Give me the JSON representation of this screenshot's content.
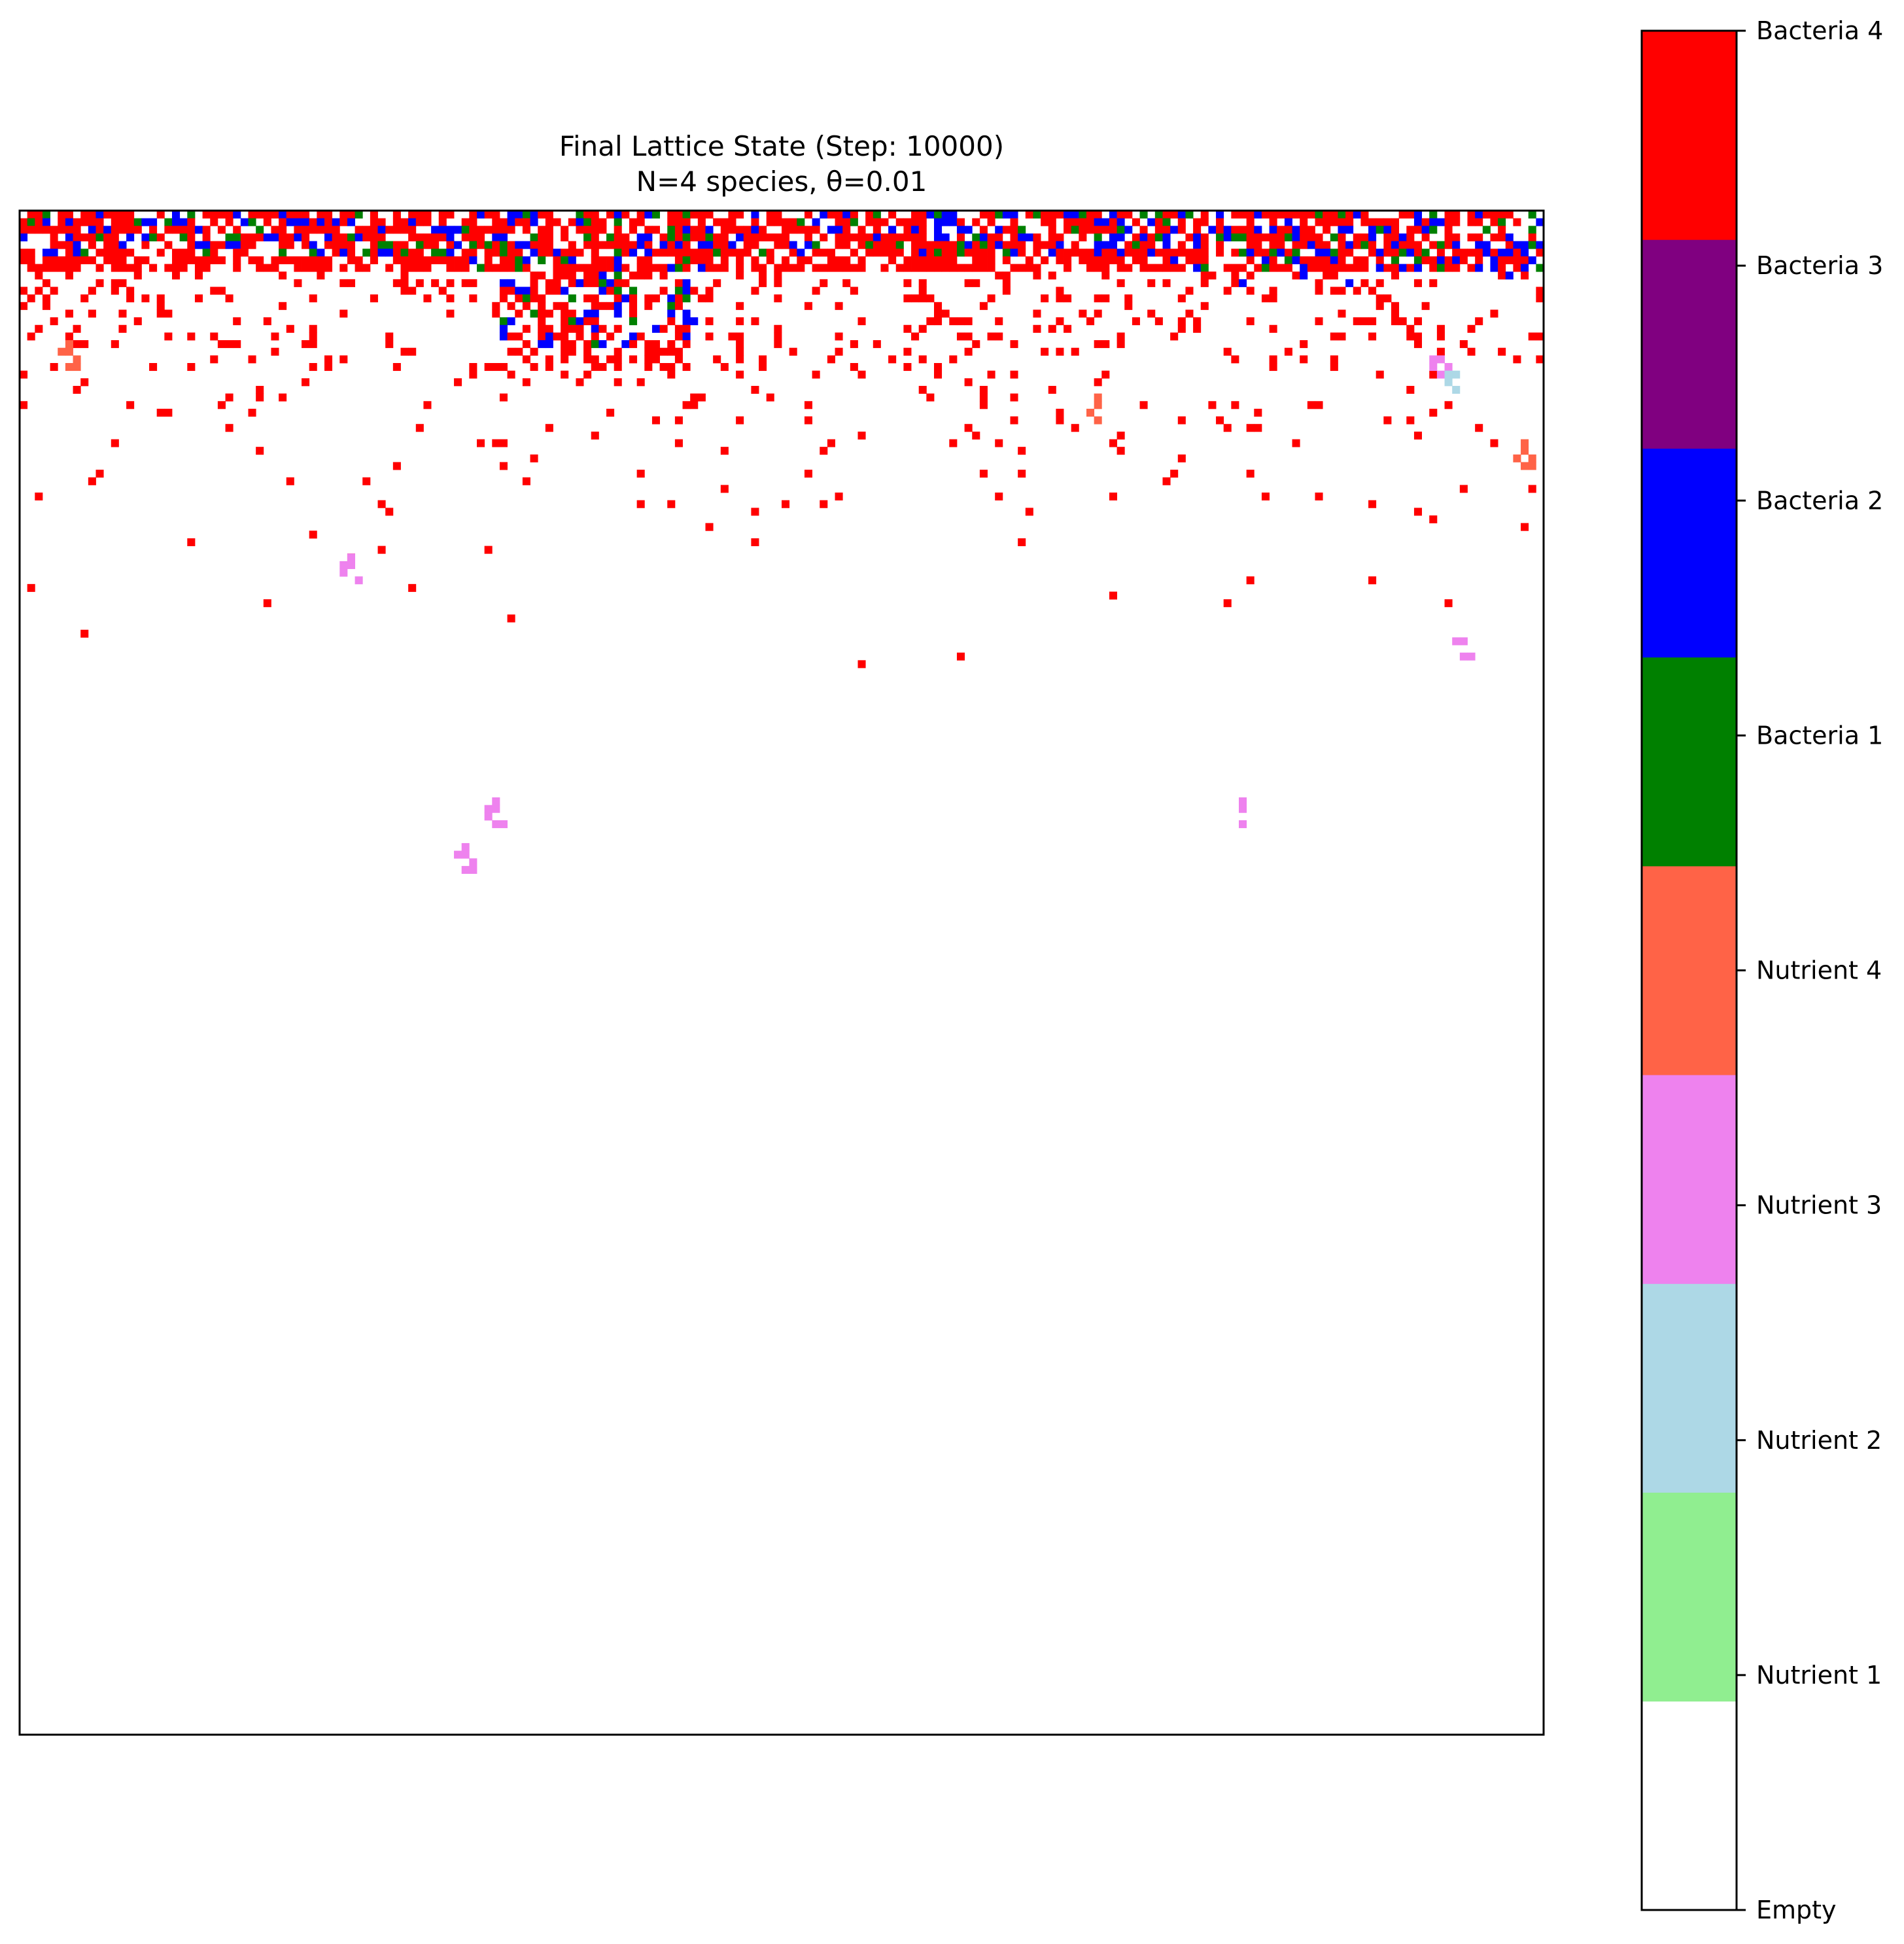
{
  "chart_data": {
    "type": "heatmap",
    "title": "Final Lattice State (Step: 10000)",
    "subtitle": "N=4 species, θ=0.01",
    "xlabel": "",
    "ylabel": "",
    "grid": false,
    "axes_ticks_visible": false,
    "lattice_size": [
      200,
      200
    ],
    "colorbar": {
      "placement": "right",
      "categories": [
        {
          "label": "Empty",
          "color": "#ffffff"
        },
        {
          "label": "Nutrient 1",
          "color": "#90ee90"
        },
        {
          "label": "Nutrient 2",
          "color": "#add8e6"
        },
        {
          "label": "Nutrient 3",
          "color": "#ee82ee"
        },
        {
          "label": "Nutrient 4",
          "color": "#ff6347"
        },
        {
          "label": "Bacteria 1",
          "color": "#008000"
        },
        {
          "label": "Bacteria 2",
          "color": "#0000ff"
        },
        {
          "label": "Bacteria 3",
          "color": "#800080"
        },
        {
          "label": "Bacteria 4",
          "color": "#ff0000"
        }
      ]
    },
    "density_profile": {
      "description_rows": "bacteria colonies concentrated near the top rows, thinning to sparse by row ~50",
      "dense_rows": [
        0,
        20
      ],
      "scattered_rows": [
        20,
        60
      ],
      "mixing_top_rows": [
        0,
        8
      ]
    },
    "nutrient_clusters": [
      {
        "label": "Nutrient 3",
        "row": 46,
        "col": 42
      },
      {
        "label": "Nutrient 3",
        "row": 84,
        "col": 57
      },
      {
        "label": "Nutrient 3",
        "row": 78,
        "col": 61
      },
      {
        "label": "Nutrient 3",
        "row": 78,
        "col": 159
      },
      {
        "label": "Nutrient 3",
        "row": 56,
        "col": 188
      },
      {
        "label": "Nutrient 3",
        "row": 19,
        "col": 185
      },
      {
        "label": "Nutrient 2",
        "row": 21,
        "col": 187
      },
      {
        "label": "Nutrient 4",
        "row": 25,
        "col": 140
      },
      {
        "label": "Nutrient 4",
        "row": 31,
        "col": 196
      },
      {
        "label": "Nutrient 4",
        "row": 18,
        "col": 5
      }
    ]
  }
}
